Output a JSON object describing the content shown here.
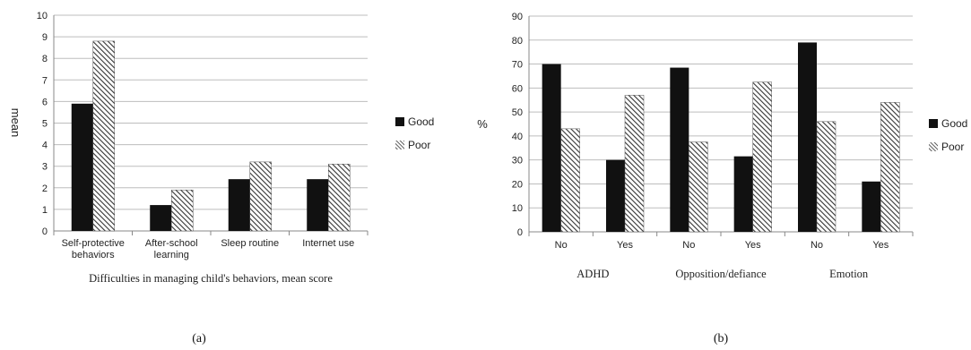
{
  "chart_data": [
    {
      "type": "bar",
      "panel_label": "(a)",
      "xlabel": "Difficulties in managing child's behaviors, mean score",
      "ylabel": "mean",
      "ylim": [
        0,
        10
      ],
      "yticks": [
        0,
        1,
        2,
        3,
        4,
        5,
        6,
        7,
        8,
        9,
        10
      ],
      "grid": true,
      "legend_position": "right",
      "categories": [
        [
          "Self-protective",
          "behaviors"
        ],
        [
          "After-school",
          "learning"
        ],
        [
          "Sleep routine"
        ],
        [
          "Internet use"
        ]
      ],
      "series": [
        {
          "name": "Good",
          "values": [
            5.9,
            1.2,
            2.4,
            2.4
          ]
        },
        {
          "name": "Poor",
          "values": [
            8.8,
            1.9,
            3.2,
            3.1
          ]
        }
      ]
    },
    {
      "type": "bar",
      "panel_label": "(b)",
      "xlabel": "",
      "ylabel": "%",
      "ylim": [
        0,
        90
      ],
      "yticks": [
        0,
        10,
        20,
        30,
        40,
        50,
        60,
        70,
        80,
        90
      ],
      "grid": true,
      "legend_position": "right",
      "categories": [
        "No",
        "Yes",
        "No",
        "Yes",
        "No",
        "Yes"
      ],
      "groups": [
        "ADHD",
        "Opposition/defiance",
        "Emotion"
      ],
      "series": [
        {
          "name": "Good",
          "values": [
            70,
            30,
            68.5,
            31.5,
            79,
            21
          ]
        },
        {
          "name": "Poor",
          "values": [
            43,
            57,
            37.5,
            62.5,
            46,
            54
          ]
        }
      ]
    }
  ],
  "colors": {
    "good": "#111111",
    "poor_hatch": "#444444",
    "grid": "#bdbdbd",
    "axis": "#888888"
  }
}
